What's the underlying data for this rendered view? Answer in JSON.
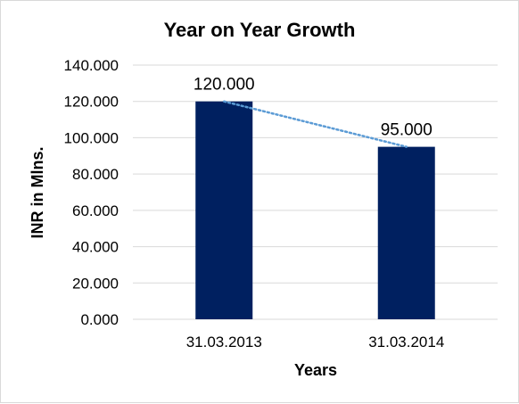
{
  "chart_data": {
    "type": "bar",
    "title": "Year on Year Growth",
    "xlabel": "Years",
    "ylabel": "INR in Mlns.",
    "categories": [
      "31.03.2013",
      "31.03.2014"
    ],
    "values": [
      120,
      95
    ],
    "value_labels": [
      "120.000",
      "95.000"
    ],
    "ylim": [
      0,
      140
    ],
    "yticks": [
      0,
      20,
      40,
      60,
      80,
      100,
      120,
      140
    ],
    "ytick_labels": [
      "0.000",
      "20.000",
      "40.000",
      "60.000",
      "80.000",
      "100.000",
      "120.000",
      "140.000"
    ],
    "grid": true,
    "legend": "none",
    "trendline": "linear",
    "colors": {
      "bar": "#002060",
      "trendline": "#5b9bd5",
      "grid": "#d9d9d9"
    }
  }
}
